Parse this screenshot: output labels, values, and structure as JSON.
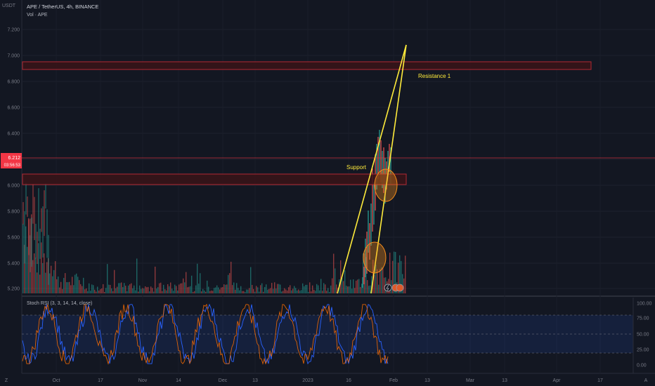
{
  "header": {
    "symbol_line": "APE / TetherUS, 4h, BINANCE",
    "volume_line": "Vol · APE",
    "currency": "USDT"
  },
  "price_axis": {
    "ticks": [
      "7.200",
      "7.000",
      "6.800",
      "6.600",
      "6.400",
      "6.200",
      "6.000",
      "5.800",
      "5.600",
      "5.400",
      "5.200"
    ],
    "current_price": "6.212",
    "countdown": "03:56:53"
  },
  "rsi_panel": {
    "label": "Stoch RSI (3, 3, 14, 14, close)",
    "ticks": [
      "100.00",
      "75.00",
      "50.00",
      "25.00",
      "0.00"
    ]
  },
  "time_axis": {
    "labels": [
      "Oct",
      "17",
      "Nov",
      "14",
      "Dec",
      "13",
      "2023",
      "16",
      "Feb",
      "13",
      "Mar",
      "13",
      "Apr",
      "17"
    ]
  },
  "annotations": {
    "resistance": "Resistance 1",
    "support": "Support"
  },
  "buttons": {
    "z_button": "Z",
    "auto_button": "A"
  },
  "colors": {
    "background": "#131722",
    "zone_fill": "#3a1418",
    "zone_border": "#b22833",
    "trendline": "#ffeb3b",
    "circle": "#f48c1b",
    "volume_up": "#26a69a",
    "volume_down": "#ef5350",
    "rsi_k": "#2962ff",
    "rsi_d": "#ff6d00",
    "price_tag": "#f23645"
  },
  "chart_data": [
    {
      "type": "line",
      "title": "APE / TetherUS, 4h, BINANCE",
      "y_axis_ticks": [
        7.2,
        7.0,
        6.8,
        6.6,
        6.4,
        6.2,
        6.0,
        5.8,
        5.6,
        5.4,
        5.2
      ],
      "ylim": [
        5.17,
        7.4
      ],
      "current_price": 6.212,
      "zones": [
        {
          "name": "Resistance 1",
          "low": 6.87,
          "high": 6.93
        },
        {
          "name": "Support",
          "low": 5.99,
          "high": 6.07
        }
      ],
      "trendlines": [
        {
          "from_date": "2023-01-14",
          "from_price": 5.18,
          "to_date": "2023-02-05",
          "to_price": 7.07
        },
        {
          "from_date": "2023-01-26",
          "from_price": 5.18,
          "to_date": "2023-02-05",
          "to_price": 7.07
        }
      ],
      "price_grid": "on"
    },
    {
      "type": "line",
      "title": "Stoch RSI (3, 3, 14, 14, close)",
      "y_axis_ticks": [
        100,
        75,
        50,
        25,
        0
      ],
      "ylim": [
        -10,
        110
      ],
      "bands": [
        20,
        50,
        80
      ]
    }
  ]
}
